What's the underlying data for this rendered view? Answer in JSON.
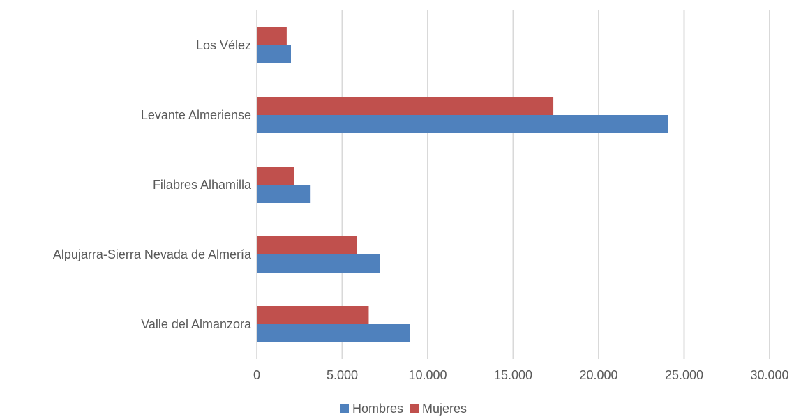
{
  "chart_data": {
    "type": "bar",
    "orientation": "horizontal",
    "categories": [
      "Los Vélez",
      "Levante Almeriense",
      "Filabres Alhamilla",
      "Alpujarra-Sierra Nevada de Almería",
      "Valle del Almanzora"
    ],
    "series": [
      {
        "name": "Mujeres",
        "color": "#c0504d",
        "values": [
          1750,
          17350,
          2200,
          5850,
          6550
        ]
      },
      {
        "name": "Hombres",
        "color": "#4f81bd",
        "values": [
          2000,
          24050,
          3150,
          7200,
          8950
        ]
      }
    ],
    "x_ticks": [
      "0",
      "5.000",
      "10.000",
      "15.000",
      "20.000",
      "25.000",
      "30.000"
    ],
    "xlim": [
      0,
      30000
    ],
    "grid": true,
    "legend": {
      "position": "bottom",
      "entries": [
        "Hombres",
        "Mujeres"
      ]
    },
    "title": "",
    "xlabel": "",
    "ylabel": ""
  }
}
